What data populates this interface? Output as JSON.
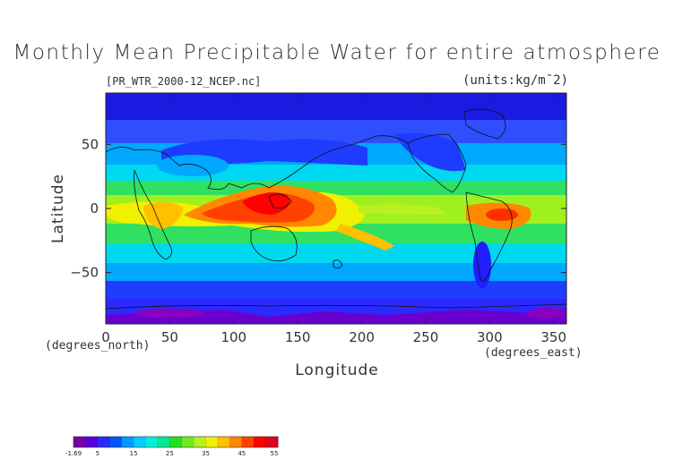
{
  "map": {
    "title": "Monthly Mean Precipitable Water for entire atmosphere",
    "file_label": "[PR_WTR_2000-12_NCEP.nc]",
    "units_label": "(units:kg/m¯2)",
    "projection": "equirectangular",
    "x_axis": {
      "title": "Longitude",
      "note": "(degrees_east)",
      "range": [
        0,
        360
      ],
      "ticks": [
        "0",
        "50",
        "100",
        "150",
        "200",
        "250",
        "300",
        "350"
      ],
      "tick_values": [
        0,
        50,
        100,
        150,
        200,
        250,
        300,
        350
      ]
    },
    "y_axis": {
      "title": "Latitude",
      "note": "(degrees_north)",
      "range": [
        -90,
        90
      ],
      "ticks": [
        "50",
        "0",
        "−50"
      ],
      "tick_values": [
        50,
        0,
        -50
      ]
    },
    "colorbar": {
      "labels": [
        "-1.69",
        "5",
        "15",
        "25",
        "35",
        "45",
        "55"
      ],
      "values": [
        -1.69,
        5,
        15,
        25,
        35,
        45,
        55
      ],
      "colors": [
        "#7a00a8",
        "#5a00d8",
        "#2a2aff",
        "#0055ff",
        "#0099ff",
        "#00ccff",
        "#00f0e0",
        "#00e890",
        "#20e020",
        "#70ea20",
        "#b8f020",
        "#f0f000",
        "#ffc000",
        "#ff8800",
        "#ff4000",
        "#ff0000",
        "#e00020"
      ]
    },
    "colors": {
      "dry": "#5a00d8",
      "low": "#1e1eff",
      "moderate": "#00c8ff",
      "humid": "#40e030",
      "wet": "#ffd000",
      "very_wet": "#ff3000",
      "coastline": "#111111"
    }
  }
}
